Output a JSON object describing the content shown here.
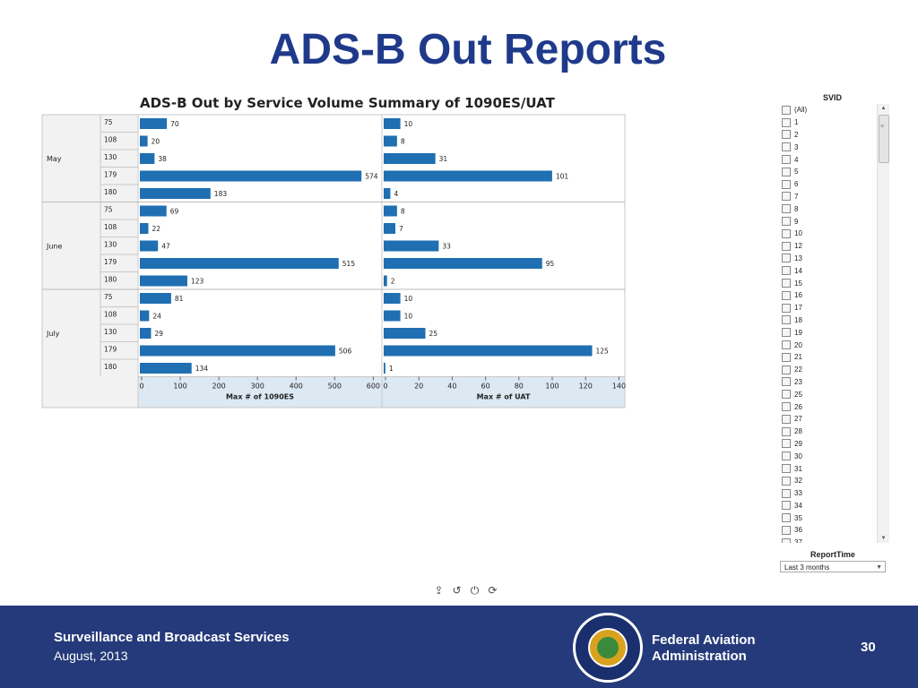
{
  "page_title": "ADS-B Out Reports",
  "chart_data": {
    "type": "bar",
    "orientation": "horizontal",
    "title": "ADS-B Out by Service Volume Summary of 1090ES/UAT",
    "months": [
      "May",
      "June",
      "July"
    ],
    "svids": [
      "75",
      "108",
      "130",
      "179",
      "180"
    ],
    "series": [
      {
        "name": "Max # of 1090ES",
        "xlim": [
          0,
          620
        ],
        "ticks": [
          0,
          100,
          200,
          300,
          400,
          500,
          600
        ],
        "values": [
          [
            70,
            20,
            38,
            574,
            183
          ],
          [
            69,
            22,
            47,
            515,
            123
          ],
          [
            81,
            24,
            29,
            506,
            134
          ]
        ]
      },
      {
        "name": "Max # of UAT",
        "xlim": [
          0,
          143
        ],
        "ticks": [
          0,
          20,
          40,
          60,
          80,
          100,
          120,
          140
        ],
        "values": [
          [
            10,
            8,
            31,
            101,
            4
          ],
          [
            8,
            7,
            33,
            95,
            2
          ],
          [
            10,
            10,
            25,
            125,
            1
          ]
        ]
      }
    ],
    "colors": {
      "bar": "#1f6fb2",
      "axis_bg": "#dce8f2",
      "grid": "#c8c8c8",
      "label_bg": "#f2f2f2"
    }
  },
  "filter": {
    "svid_title": "SVID",
    "svid_options": [
      "(All)",
      "1",
      "2",
      "3",
      "4",
      "5",
      "6",
      "7",
      "8",
      "9",
      "10",
      "12",
      "13",
      "14",
      "15",
      "16",
      "17",
      "18",
      "19",
      "20",
      "21",
      "22",
      "23",
      "25",
      "26",
      "27",
      "28",
      "29",
      "30",
      "31",
      "32",
      "33",
      "34",
      "35",
      "36",
      "37"
    ],
    "report_time_title": "ReportTime",
    "report_time_value": "Last 3 months"
  },
  "toolbar": {
    "icons": [
      "export-icon",
      "undo-icon",
      "pause-icon",
      "refresh-icon"
    ]
  },
  "footer": {
    "org": "Surveillance and Broadcast Services",
    "date": "August, 2013",
    "agency_line1": "Federal Aviation",
    "agency_line2": "Administration",
    "page_number": "30",
    "seal_text": "FEDERAL AVIATION ADMINISTRATION"
  }
}
